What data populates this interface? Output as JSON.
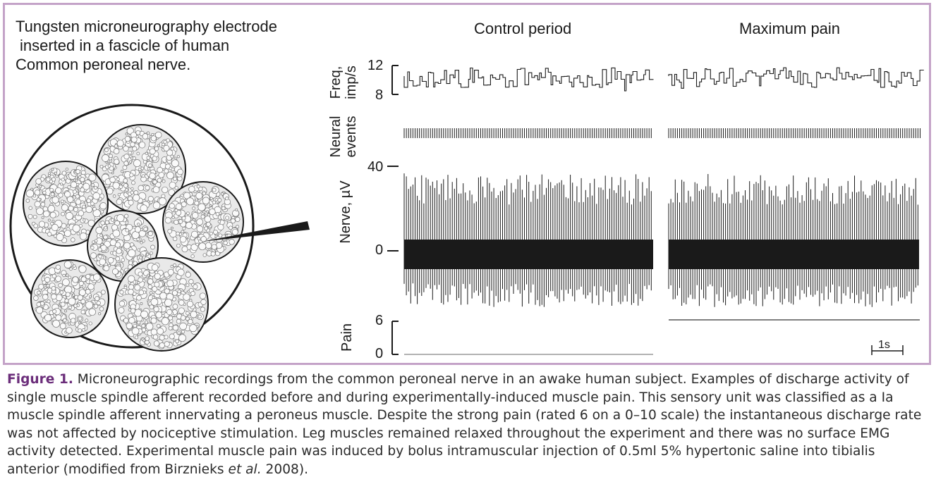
{
  "intro": {
    "line1": "Tungsten microneurography electrode",
    "line2": "inserted in a fascicle of  human",
    "line3": "Common peroneal nerve."
  },
  "columns": {
    "control": "Control period",
    "pain": "Maximum pain"
  },
  "axes": {
    "freq_label_1": "Freq,",
    "freq_label_2": "imp/s",
    "freq_ticks": [
      "12",
      "8"
    ],
    "events_label_1": "Neural",
    "events_label_2": "events",
    "nerve_label": "Nerve, µV",
    "nerve_ticks": [
      "40",
      "0"
    ],
    "pain_label": "Pain",
    "pain_ticks": [
      "6",
      "0"
    ]
  },
  "scale_bar": "1s",
  "caption": {
    "lead": "Figure 1.",
    "body_1": " Microneurographic recordings from the common peroneal nerve in an awake human subject. Examples of discharge activity of single muscle spindle afferent recorded before and during experimentally-induced muscle pain. This sensory unit was classified as a Ia muscle spindle afferent innervating a peroneus muscle. Despite the strong pain (rated 6 on a 0–10 scale) the instantaneous discharge rate was not affected by nociceptive stimulation. Leg muscles remained relaxed throughout the experiment and there was no surface EMG activity detected. Experimental muscle pain was induced by bolus intramuscular injection of 0.5ml 5% hypertonic saline into tibialis anterior (modified from Birznieks ",
    "etal": "et al.",
    "body_2": " 2008)."
  },
  "colors": {
    "border": "#c4a3c8",
    "caption_lead": "#6b2d7a",
    "trace": "#1a1a1a"
  }
}
